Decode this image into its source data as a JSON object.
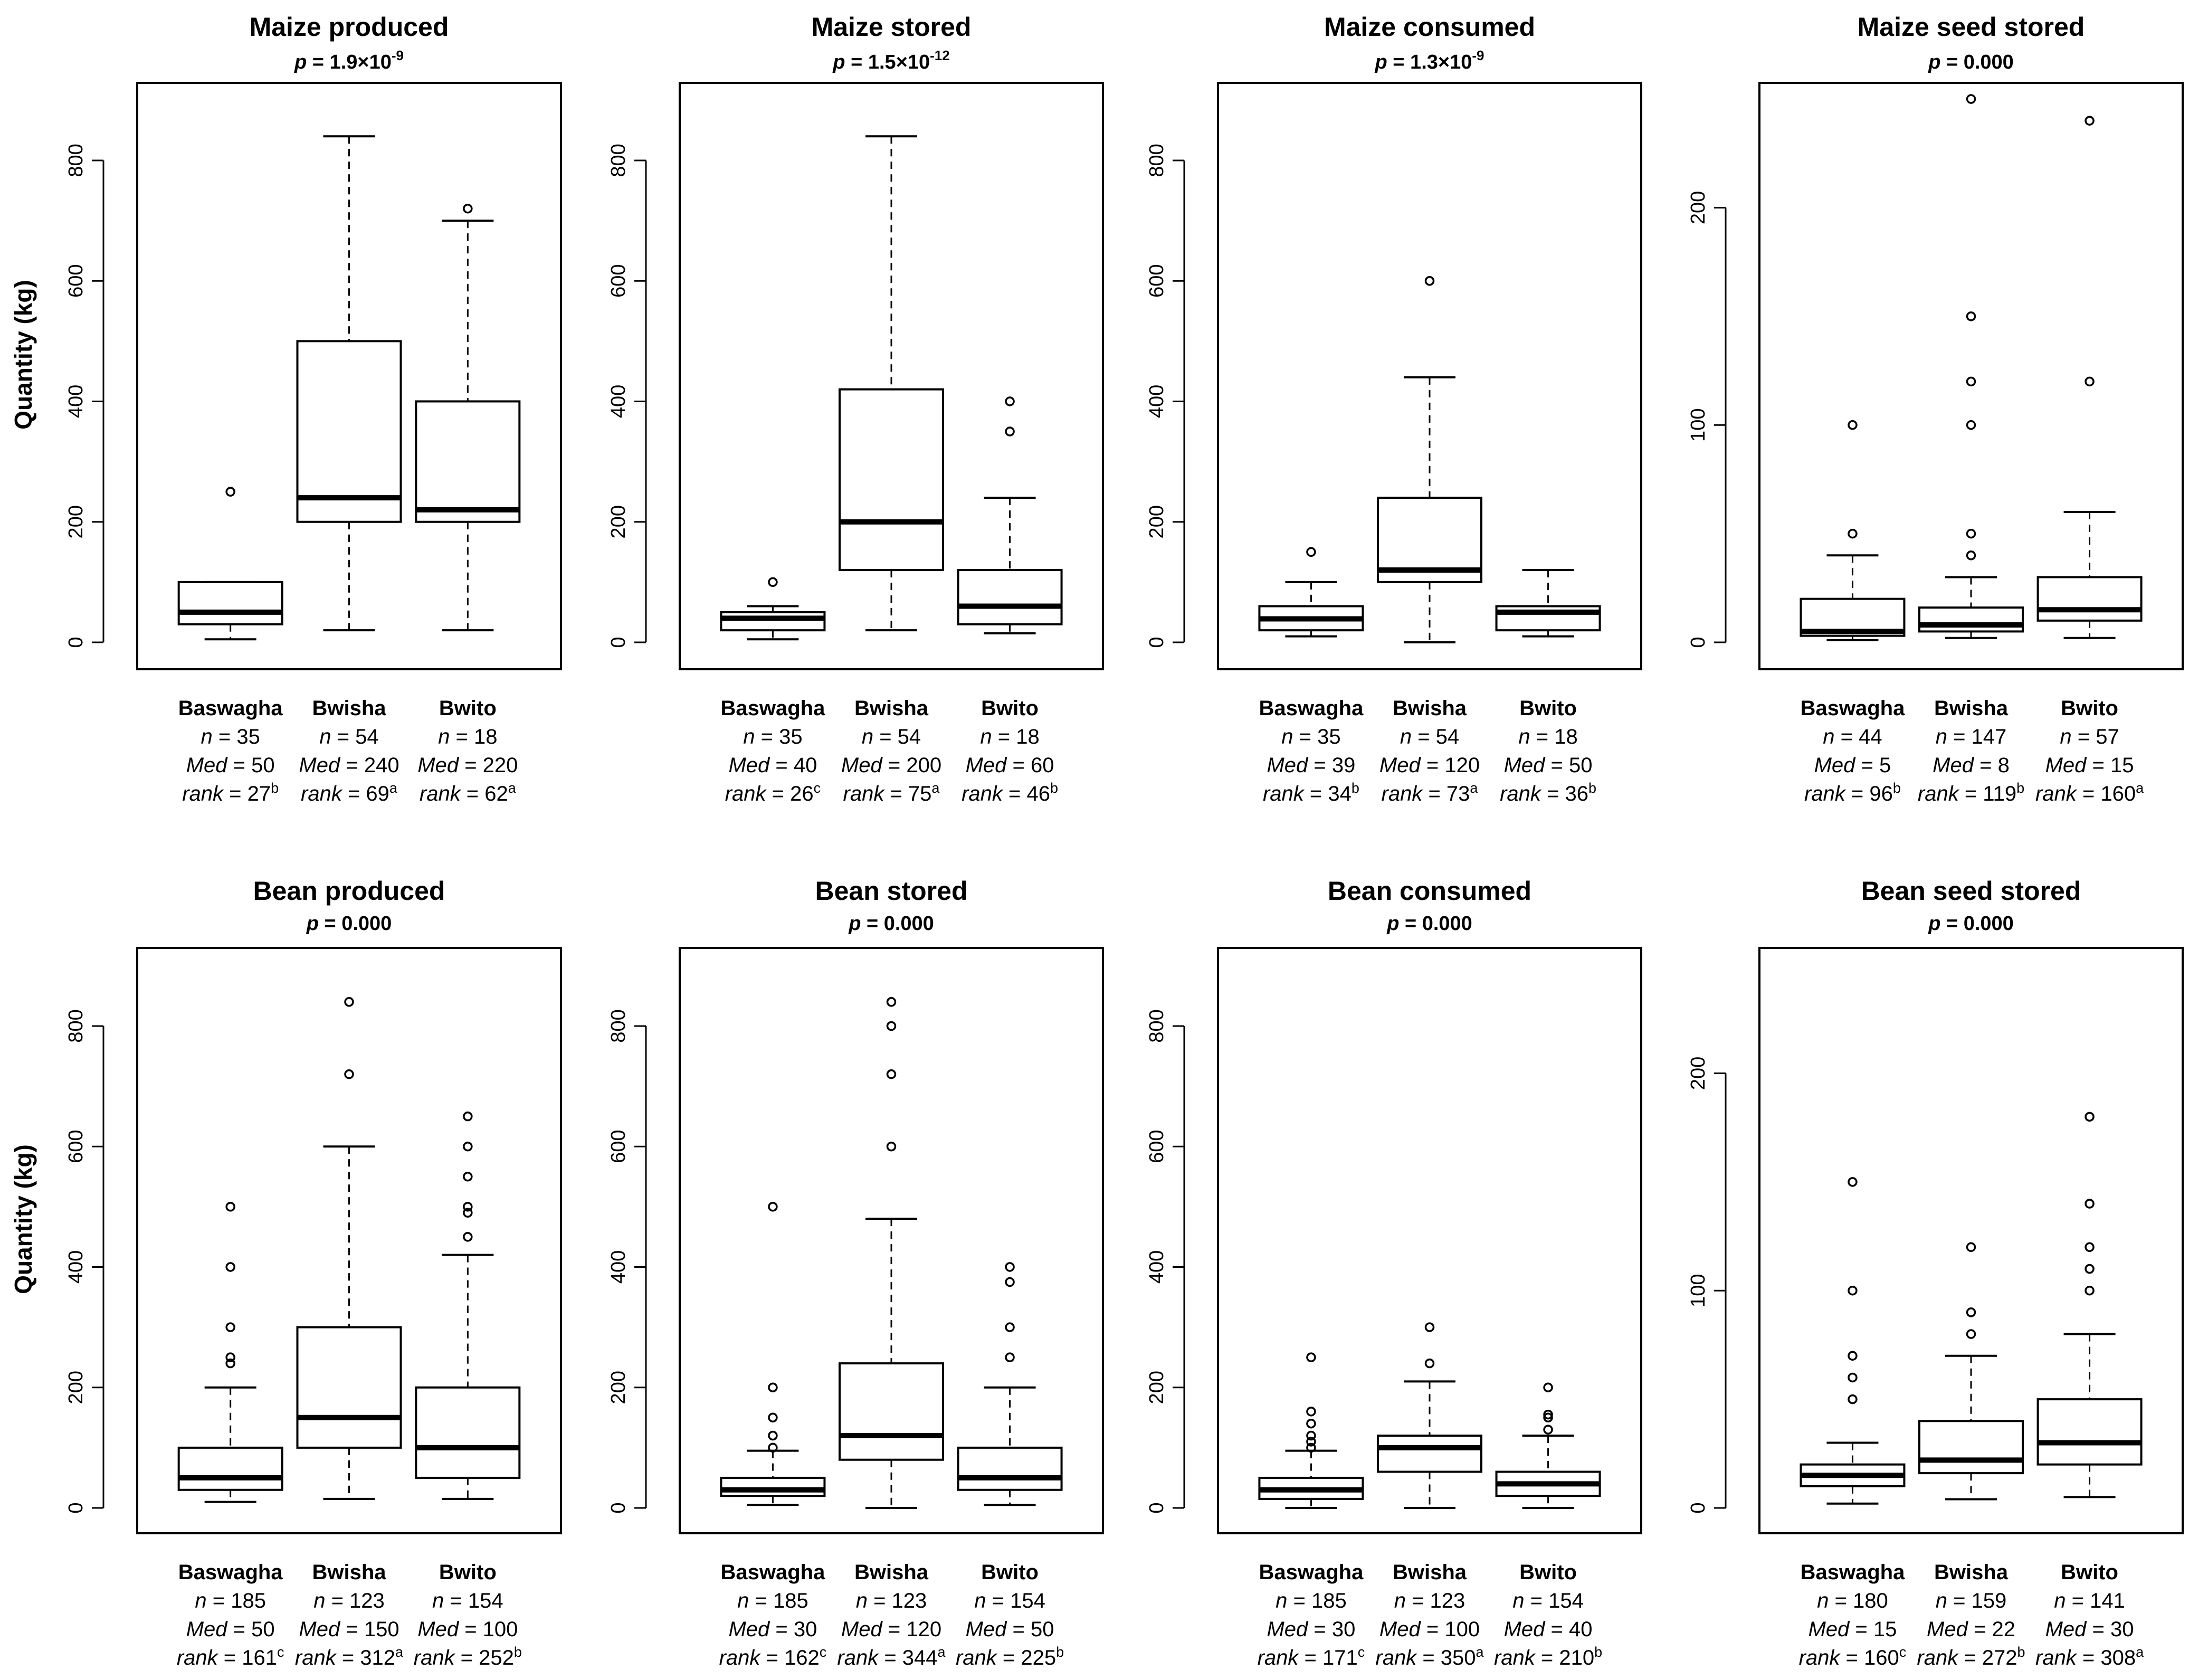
{
  "y_axis_label": "Quantity (kg)",
  "colors": {
    "ink": "#000000",
    "background": "#ffffff"
  },
  "stat_labels": {
    "n": "n",
    "med": "Med",
    "rank": "rank"
  },
  "chart_data": [
    {
      "type": "boxplot",
      "title": "Maize produced",
      "p_value": {
        "text": "p = 1.9×10",
        "exponent": "-9"
      },
      "ylabel": "Quantity (kg)",
      "ylim": [
        0,
        920
      ],
      "yticks": [
        0,
        200,
        400,
        600,
        800
      ],
      "groups": [
        {
          "name": "Baswagha",
          "n": "35",
          "med": "50",
          "rank": "27",
          "letter": "b",
          "whisker_low": 5,
          "q1": 30,
          "median": 50,
          "q3": 100,
          "whisker_high": 100,
          "outliers": [
            250
          ]
        },
        {
          "name": "Bwisha",
          "n": "54",
          "med": "240",
          "rank": "69",
          "letter": "a",
          "whisker_low": 20,
          "q1": 200,
          "median": 240,
          "q3": 500,
          "whisker_high": 840,
          "outliers": []
        },
        {
          "name": "Bwito",
          "n": "18",
          "med": "220",
          "rank": "62",
          "letter": "a",
          "whisker_low": 20,
          "q1": 200,
          "median": 220,
          "q3": 400,
          "whisker_high": 700,
          "outliers": [
            720
          ]
        }
      ]
    },
    {
      "type": "boxplot",
      "title": "Maize stored",
      "p_value": {
        "text": "p = 1.5×10",
        "exponent": "-12"
      },
      "ylabel": "Quantity (kg)",
      "ylim": [
        0,
        920
      ],
      "yticks": [
        0,
        200,
        400,
        600,
        800
      ],
      "groups": [
        {
          "name": "Baswagha",
          "n": "35",
          "med": "40",
          "rank": "26",
          "letter": "c",
          "whisker_low": 5,
          "q1": 20,
          "median": 40,
          "q3": 50,
          "whisker_high": 60,
          "outliers": [
            100
          ]
        },
        {
          "name": "Bwisha",
          "n": "54",
          "med": "200",
          "rank": "75",
          "letter": "a",
          "whisker_low": 20,
          "q1": 120,
          "median": 200,
          "q3": 420,
          "whisker_high": 840,
          "outliers": []
        },
        {
          "name": "Bwito",
          "n": "18",
          "med": "60",
          "rank": "46",
          "letter": "b",
          "whisker_low": 15,
          "q1": 30,
          "median": 60,
          "q3": 120,
          "whisker_high": 240,
          "outliers": [
            350,
            400
          ]
        }
      ]
    },
    {
      "type": "boxplot",
      "title": "Maize consumed",
      "p_value": {
        "text": "p = 1.3×10",
        "exponent": "-9"
      },
      "ylabel": "Quantity (kg)",
      "ylim": [
        0,
        920
      ],
      "yticks": [
        0,
        200,
        400,
        600,
        800
      ],
      "groups": [
        {
          "name": "Baswagha",
          "n": "35",
          "med": "39",
          "rank": "34",
          "letter": "b",
          "whisker_low": 10,
          "q1": 20,
          "median": 39,
          "q3": 60,
          "whisker_high": 100,
          "outliers": [
            150
          ]
        },
        {
          "name": "Bwisha",
          "n": "54",
          "med": "120",
          "rank": "73",
          "letter": "a",
          "whisker_low": 0,
          "q1": 100,
          "median": 120,
          "q3": 240,
          "whisker_high": 440,
          "outliers": [
            600
          ]
        },
        {
          "name": "Bwito",
          "n": "18",
          "med": "50",
          "rank": "36",
          "letter": "b",
          "whisker_low": 10,
          "q1": 20,
          "median": 50,
          "q3": 60,
          "whisker_high": 120,
          "outliers": []
        }
      ]
    },
    {
      "type": "boxplot",
      "title": "Maize seed stored",
      "p_value": {
        "text": "p = 0.000",
        "exponent": ""
      },
      "ylabel": "Quantity (kg)",
      "ylim": [
        0,
        255
      ],
      "yticks": [
        0,
        100,
        200
      ],
      "groups": [
        {
          "name": "Baswagha",
          "n": "44",
          "med": "5",
          "rank": "96",
          "letter": "b",
          "whisker_low": 1,
          "q1": 3,
          "median": 5,
          "q3": 20,
          "whisker_high": 40,
          "outliers": [
            50,
            100
          ]
        },
        {
          "name": "Bwisha",
          "n": "147",
          "med": "8",
          "rank": "119",
          "letter": "b",
          "whisker_low": 2,
          "q1": 5,
          "median": 8,
          "q3": 16,
          "whisker_high": 30,
          "outliers": [
            40,
            50,
            100,
            120,
            150,
            250
          ]
        },
        {
          "name": "Bwito",
          "n": "57",
          "med": "15",
          "rank": "160",
          "letter": "a",
          "whisker_low": 2,
          "q1": 10,
          "median": 15,
          "q3": 30,
          "whisker_high": 60,
          "outliers": [
            120,
            240
          ]
        }
      ]
    },
    {
      "type": "boxplot",
      "title": "Bean produced",
      "p_value": {
        "text": "p = 0.000",
        "exponent": ""
      },
      "ylabel": "Quantity (kg)",
      "ylim": [
        0,
        920
      ],
      "yticks": [
        0,
        200,
        400,
        600,
        800
      ],
      "groups": [
        {
          "name": "Baswagha",
          "n": "185",
          "med": "50",
          "rank": "161",
          "letter": "c",
          "whisker_low": 10,
          "q1": 30,
          "median": 50,
          "q3": 100,
          "whisker_high": 200,
          "outliers": [
            240,
            250,
            300,
            400,
            500
          ]
        },
        {
          "name": "Bwisha",
          "n": "123",
          "med": "150",
          "rank": "312",
          "letter": "a",
          "whisker_low": 15,
          "q1": 100,
          "median": 150,
          "q3": 300,
          "whisker_high": 600,
          "outliers": [
            720,
            840
          ]
        },
        {
          "name": "Bwito",
          "n": "154",
          "med": "100",
          "rank": "252",
          "letter": "b",
          "whisker_low": 15,
          "q1": 50,
          "median": 100,
          "q3": 200,
          "whisker_high": 420,
          "outliers": [
            450,
            490,
            500,
            550,
            600,
            650
          ]
        }
      ]
    },
    {
      "type": "boxplot",
      "title": "Bean stored",
      "p_value": {
        "text": "p = 0.000",
        "exponent": ""
      },
      "ylabel": "Quantity (kg)",
      "ylim": [
        0,
        920
      ],
      "yticks": [
        0,
        200,
        400,
        600,
        800
      ],
      "groups": [
        {
          "name": "Baswagha",
          "n": "185",
          "med": "30",
          "rank": "162",
          "letter": "c",
          "whisker_low": 5,
          "q1": 20,
          "median": 30,
          "q3": 50,
          "whisker_high": 95,
          "outliers": [
            100,
            120,
            150,
            200,
            500
          ]
        },
        {
          "name": "Bwisha",
          "n": "123",
          "med": "120",
          "rank": "344",
          "letter": "a",
          "whisker_low": 0,
          "q1": 80,
          "median": 120,
          "q3": 240,
          "whisker_high": 480,
          "outliers": [
            600,
            720,
            800,
            840
          ]
        },
        {
          "name": "Bwito",
          "n": "154",
          "med": "50",
          "rank": "225",
          "letter": "b",
          "whisker_low": 5,
          "q1": 30,
          "median": 50,
          "q3": 100,
          "whisker_high": 200,
          "outliers": [
            250,
            300,
            375,
            400
          ]
        }
      ]
    },
    {
      "type": "boxplot",
      "title": "Bean consumed",
      "p_value": {
        "text": "p = 0.000",
        "exponent": ""
      },
      "ylabel": "Quantity (kg)",
      "ylim": [
        0,
        920
      ],
      "yticks": [
        0,
        200,
        400,
        600,
        800
      ],
      "groups": [
        {
          "name": "Baswagha",
          "n": "185",
          "med": "30",
          "rank": "171",
          "letter": "c",
          "whisker_low": 0,
          "q1": 15,
          "median": 30,
          "q3": 50,
          "whisker_high": 95,
          "outliers": [
            100,
            110,
            120,
            140,
            160,
            250
          ]
        },
        {
          "name": "Bwisha",
          "n": "123",
          "med": "100",
          "rank": "350",
          "letter": "a",
          "whisker_low": 0,
          "q1": 60,
          "median": 100,
          "q3": 120,
          "whisker_high": 210,
          "outliers": [
            240,
            300
          ]
        },
        {
          "name": "Bwito",
          "n": "154",
          "med": "40",
          "rank": "210",
          "letter": "b",
          "whisker_low": 0,
          "q1": 20,
          "median": 40,
          "q3": 60,
          "whisker_high": 120,
          "outliers": [
            130,
            150,
            155,
            200
          ]
        }
      ]
    },
    {
      "type": "boxplot",
      "title": "Bean seed stored",
      "p_value": {
        "text": "p = 0.000",
        "exponent": ""
      },
      "ylabel": "Quantity (kg)",
      "ylim": [
        0,
        255
      ],
      "yticks": [
        0,
        100,
        200
      ],
      "groups": [
        {
          "name": "Baswagha",
          "n": "180",
          "med": "15",
          "rank": "160",
          "letter": "c",
          "whisker_low": 2,
          "q1": 10,
          "median": 15,
          "q3": 20,
          "whisker_high": 30,
          "outliers": [
            50,
            60,
            70,
            100,
            150
          ]
        },
        {
          "name": "Bwisha",
          "n": "159",
          "med": "22",
          "rank": "272",
          "letter": "b",
          "whisker_low": 4,
          "q1": 16,
          "median": 22,
          "q3": 40,
          "whisker_high": 70,
          "outliers": [
            80,
            90,
            120
          ]
        },
        {
          "name": "Bwito",
          "n": "141",
          "med": "30",
          "rank": "308",
          "letter": "a",
          "whisker_low": 5,
          "q1": 20,
          "median": 30,
          "q3": 50,
          "whisker_high": 80,
          "outliers": [
            100,
            110,
            120,
            140,
            180
          ]
        }
      ]
    }
  ]
}
